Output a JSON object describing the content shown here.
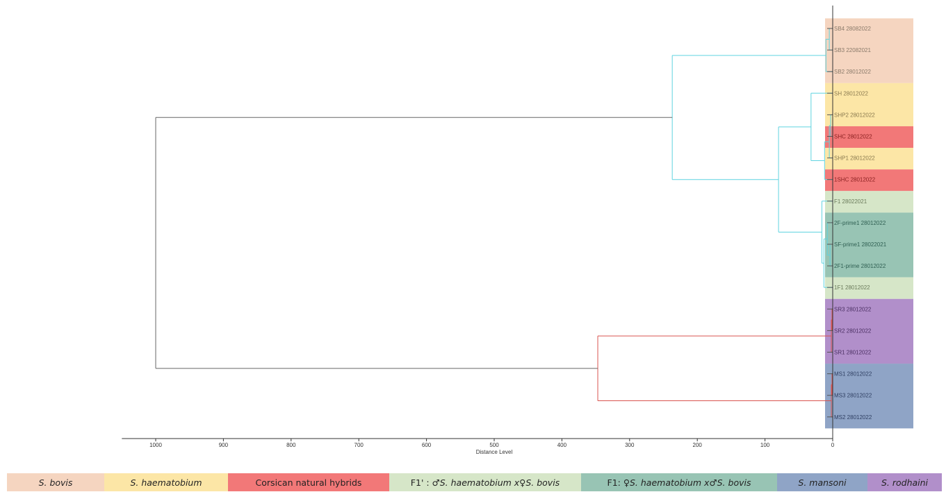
{
  "chart_data": {
    "type": "dendrogram",
    "xlabel": "Distance Level",
    "xlim": [
      1050,
      0
    ],
    "xticks": [
      1000,
      900,
      800,
      700,
      600,
      500,
      400,
      300,
      200,
      100,
      0
    ],
    "leaves": [
      {
        "label": "SB4 28082022",
        "group": "bovis"
      },
      {
        "label": "SB3 22082021",
        "group": "bovis"
      },
      {
        "label": "SB2 28012022",
        "group": "bovis"
      },
      {
        "label": "SH 28012022",
        "group": "haematobium"
      },
      {
        "label": "SHP2 28012022",
        "group": "haematobium"
      },
      {
        "label": "SHC 28012022",
        "group": "corsican"
      },
      {
        "label": "SHP1 28012022",
        "group": "haematobium"
      },
      {
        "label": "1SHC 28012022",
        "group": "corsican"
      },
      {
        "label": "F1 28022021",
        "group": "f1prime"
      },
      {
        "label": "2F-prime1 28012022",
        "group": "f1"
      },
      {
        "label": "SF-prime1 28022021",
        "group": "f1"
      },
      {
        "label": "2F1-prime 28012022",
        "group": "f1"
      },
      {
        "label": "1F1 28012022",
        "group": "f1prime"
      },
      {
        "label": "SR3 28012022",
        "group": "rodhaini"
      },
      {
        "label": "SR2 28012022",
        "group": "rodhaini"
      },
      {
        "label": "SR1 28012022",
        "group": "rodhaini"
      },
      {
        "label": "MS1 28012022",
        "group": "mansoni"
      },
      {
        "label": "MS3 28012022",
        "group": "mansoni"
      },
      {
        "label": "MS2 28012022",
        "group": "mansoni"
      }
    ],
    "clusters": [
      {
        "id": "c1",
        "children": [
          "L0",
          "L1"
        ],
        "height": 5,
        "color": "cyan"
      },
      {
        "id": "c2",
        "children": [
          "c1",
          "L2"
        ],
        "height": 10,
        "color": "cyan"
      },
      {
        "id": "c3",
        "children": [
          "L4",
          "L5"
        ],
        "height": 3,
        "color": "cyan"
      },
      {
        "id": "c4",
        "children": [
          "c3",
          "L6"
        ],
        "height": 5,
        "color": "cyan"
      },
      {
        "id": "c5",
        "children": [
          "c4",
          "L7"
        ],
        "height": 12,
        "color": "cyan"
      },
      {
        "id": "c6",
        "children": [
          "L3",
          "c5"
        ],
        "height": 32,
        "color": "cyan"
      },
      {
        "id": "c7",
        "children": [
          "L10",
          "L11"
        ],
        "height": 4,
        "color": "cyan"
      },
      {
        "id": "c8",
        "children": [
          "L9",
          "c7"
        ],
        "height": 8,
        "color": "cyan"
      },
      {
        "id": "c9",
        "children": [
          "c8",
          "L12"
        ],
        "height": 13,
        "color": "cyan"
      },
      {
        "id": "c10",
        "children": [
          "L8",
          "c9"
        ],
        "height": 16,
        "color": "cyan"
      },
      {
        "id": "c11",
        "children": [
          "c6",
          "c10"
        ],
        "height": 80,
        "color": "cyan"
      },
      {
        "id": "c12",
        "children": [
          "c2",
          "c11"
        ],
        "height": 237,
        "color": "cyan"
      },
      {
        "id": "c13",
        "children": [
          "L13",
          "L14"
        ],
        "height": 1,
        "color": "red"
      },
      {
        "id": "c14",
        "children": [
          "c13",
          "L15"
        ],
        "height": 2,
        "color": "red"
      },
      {
        "id": "c15",
        "children": [
          "L16",
          "L17"
        ],
        "height": 1,
        "color": "red"
      },
      {
        "id": "c16",
        "children": [
          "c15",
          "L18"
        ],
        "height": 2,
        "color": "red"
      },
      {
        "id": "c17",
        "children": [
          "c14",
          "c16"
        ],
        "height": 347,
        "color": "red"
      },
      {
        "id": "c18",
        "children": [
          "c12",
          "c17"
        ],
        "height": 1000,
        "color": "gray"
      }
    ],
    "link_colors": {
      "cyan": "#5fd3e0",
      "red": "#d9534f",
      "gray": "#666666"
    },
    "groups": {
      "bovis": {
        "color": "#f5d5c0",
        "text": "#8a7a6a"
      },
      "haematobium": {
        "color": "#fce6a6",
        "text": "#8a7a50"
      },
      "corsican": {
        "color": "#f27878",
        "text": "#8a2020"
      },
      "f1prime": {
        "color": "#d6e6c8",
        "text": "#6a7a5a"
      },
      "f1": {
        "color": "#98c4b4",
        "text": "#2f5f52"
      },
      "mansoni": {
        "color": "#8fa4c6",
        "text": "#2f3f62"
      },
      "rodhaini": {
        "color": "#b18fca",
        "text": "#4a2f62"
      }
    }
  },
  "legend": [
    {
      "key": "bovis",
      "label": "S. bovis",
      "italic": true,
      "color": "#f5d5c0"
    },
    {
      "key": "haematobium",
      "label": "S. haematobium",
      "italic": true,
      "color": "#fce6a6"
    },
    {
      "key": "corsican",
      "label": "Corsican natural hybrids",
      "italic": false,
      "color": "#f27878"
    },
    {
      "key": "f1prime",
      "prefix": "F1' : ♂ ",
      "sp1": "S. haematobium x",
      "mid": " ♀ ",
      "sp2": "S. bovis",
      "color": "#d6e6c8"
    },
    {
      "key": "f1",
      "prefix": "F1: ♀ ",
      "sp1": "S. haematobium x",
      "mid": " ♂ ",
      "sp2": "S. bovis",
      "color": "#98c4b4"
    },
    {
      "key": "mansoni",
      "label": "S. mansoni",
      "italic": true,
      "color": "#8fa4c6"
    },
    {
      "key": "rodhaini",
      "label": "S. rodhaini",
      "italic": true,
      "color": "#b18fca"
    }
  ]
}
